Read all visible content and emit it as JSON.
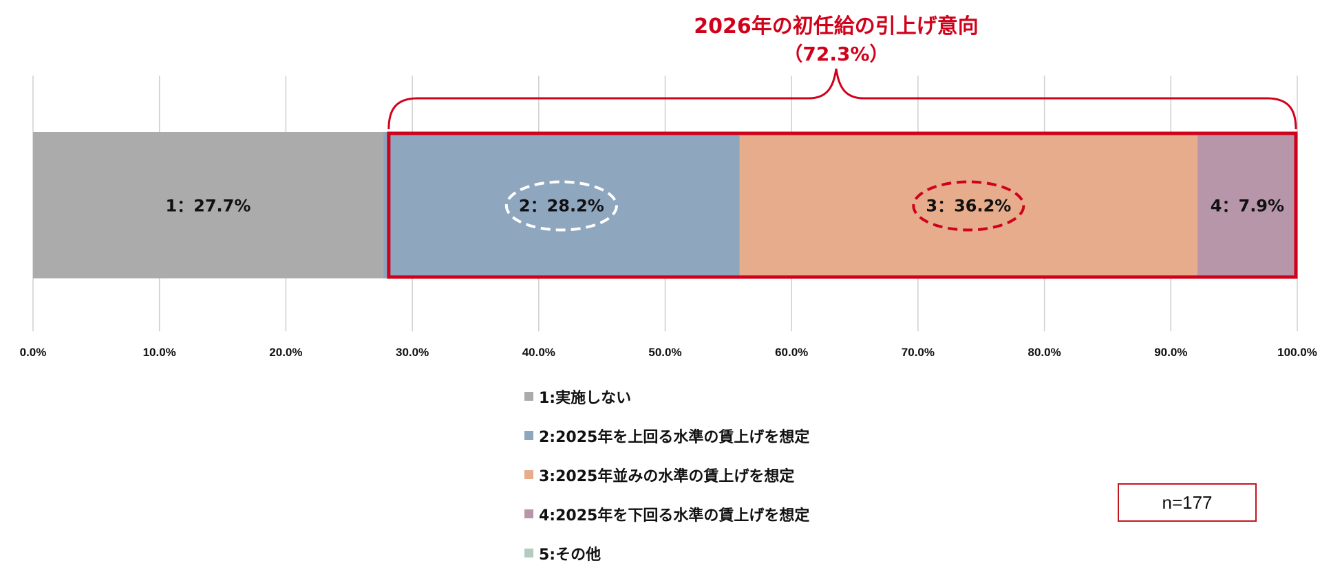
{
  "chart_data": {
    "type": "bar",
    "orientation": "horizontal",
    "stacked": true,
    "series": [
      {
        "name": "1:実施しない",
        "value": 27.7,
        "bar_label": "1：27.7%",
        "color": "#ababab"
      },
      {
        "name": "2:2025年を上回る水準の賃上げを想定",
        "value": 28.2,
        "bar_label": "2：28.2%",
        "color": "#8fa6bf"
      },
      {
        "name": "3:2025年並みの水準の賃上げを想定",
        "value": 36.2,
        "bar_label": "3：36.2%",
        "color": "#e6ac8c"
      },
      {
        "name": "4:2025年を下回る水準の賃上げを想定",
        "value": 7.9,
        "bar_label": "4：7.9%",
        "color": "#b896a9"
      },
      {
        "name": "5:その他",
        "value": 0.0,
        "bar_label": "",
        "color": "#b4cbc0"
      }
    ],
    "xlim": [
      0,
      100
    ],
    "x_ticks": [
      "0.0%",
      "10.0%",
      "20.0%",
      "30.0%",
      "40.0%",
      "50.0%",
      "60.0%",
      "70.0%",
      "80.0%",
      "90.0%",
      "100.0%"
    ],
    "grid": "vertical",
    "legend_position": "bottom",
    "annotation": {
      "title_line1": "2026年の初任給の引上げ意向",
      "title_line2": "（72.3%）",
      "range": [
        27.7,
        100
      ],
      "color": "#d0021b",
      "circled_series": [
        1,
        2
      ],
      "circle_colors": [
        "#ffffff",
        "#d0021b"
      ]
    },
    "sample_size": "n=177"
  }
}
